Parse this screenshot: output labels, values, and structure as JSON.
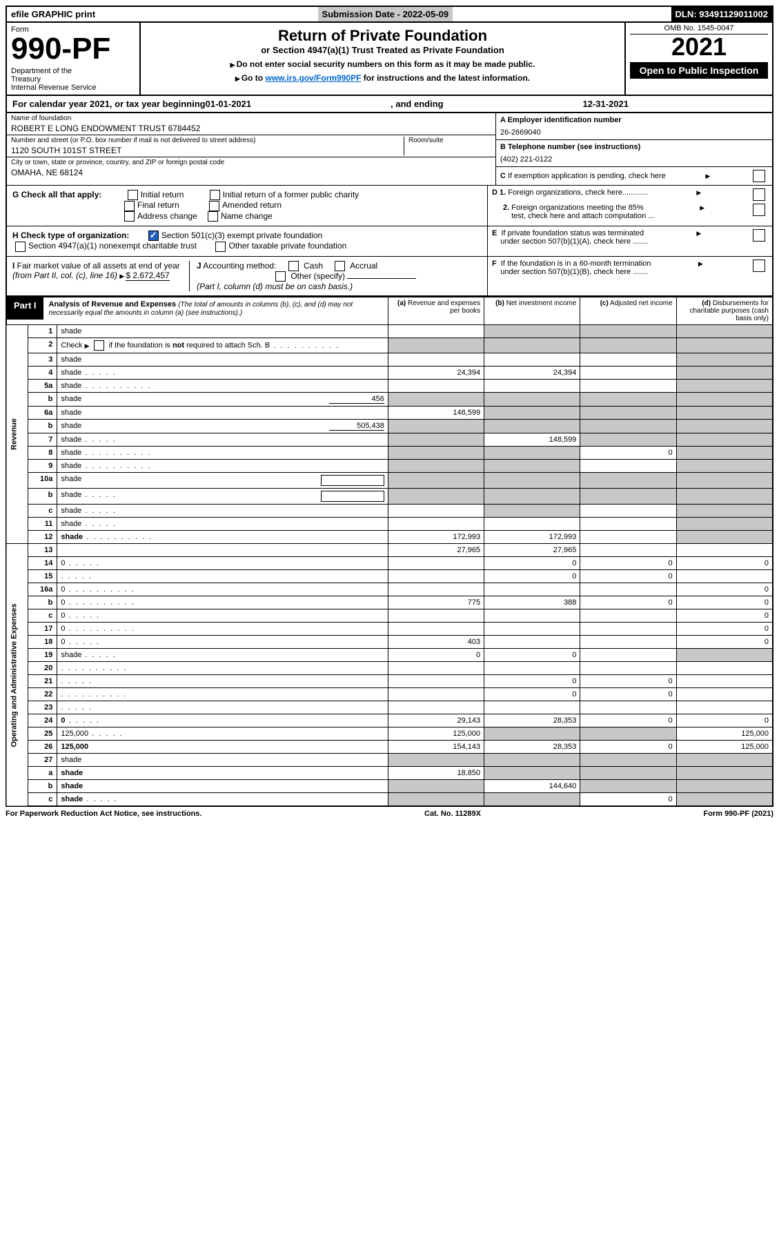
{
  "topbar": {
    "efile": "efile GRAPHIC print",
    "submission_label": "Submission Date - ",
    "submission_date": "2022-05-09",
    "dln_label": "DLN: ",
    "dln": "93491129011002"
  },
  "header": {
    "form_label": "Form",
    "form_no": "990-PF",
    "dept": "Department of the Treasury\nInternal Revenue Service",
    "title": "Return of Private Foundation",
    "subtitle": "or Section 4947(a)(1) Trust Treated as Private Foundation",
    "instr1": "Do not enter social security numbers on this form as it may be made public.",
    "instr2_pre": "Go to ",
    "instr2_link": "www.irs.gov/Form990PF",
    "instr2_post": " for instructions and the latest information.",
    "omb": "OMB No. 1545-0047",
    "year": "2021",
    "open": "Open to Public Inspection"
  },
  "calyear": {
    "pre": "For calendar year 2021, or tax year beginning ",
    "begin": "01-01-2021",
    "mid": ", and ending ",
    "end": "12-31-2021"
  },
  "id": {
    "name_label": "Name of foundation",
    "name": "ROBERT E LONG ENDOWMENT TRUST 6784452",
    "addr_label": "Number and street (or P.O. box number if mail is not delivered to street address)",
    "addr": "1120 SOUTH 101ST STREET",
    "room_label": "Room/suite",
    "city_label": "City or town, state or province, country, and ZIP or foreign postal code",
    "city": "OMAHA, NE  68124",
    "a_label": "A Employer identification number",
    "a_val": "26-2669040",
    "b_label": "B Telephone number (see instructions)",
    "b_val": "(402) 221-0122",
    "c_label": "C If exemption application is pending, check here"
  },
  "checks": {
    "g_label": "G Check all that apply:",
    "g_opts": [
      "Initial return",
      "Initial return of a former public charity",
      "Final return",
      "Amended return",
      "Address change",
      "Name change"
    ],
    "h_label": "H Check type of organization:",
    "h_opt1": "Section 501(c)(3) exempt private foundation",
    "h_opt2": "Section 4947(a)(1) nonexempt charitable trust",
    "h_opt3": "Other taxable private foundation",
    "i_label": "I Fair market value of all assets at end of year (from Part II, col. (c), line 16)",
    "i_val": "$  2,672,457",
    "j_label": "J Accounting method:",
    "j_opts": [
      "Cash",
      "Accrual"
    ],
    "j_other": "Other (specify)",
    "j_note": "(Part I, column (d) must be on cash basis.)",
    "d1": "D 1. Foreign organizations, check here............",
    "d2": "2. Foreign organizations meeting the 85% test, check here and attach computation ...",
    "e": "E  If private foundation status was terminated under section 507(b)(1)(A), check here .......",
    "f": "F  If the foundation is in a 60-month termination under section 507(b)(1)(B), check here ......."
  },
  "part1": {
    "label": "Part I",
    "title": "Analysis of Revenue and Expenses",
    "note": "(The total of amounts in columns (b), (c), and (d) may not necessarily equal the amounts in column (a) (see instructions).)",
    "col_a": "(a)   Revenue and expenses per books",
    "col_b": "(b)   Net investment income",
    "col_c": "(c)   Adjusted net income",
    "col_d": "(d)   Disbursements for charitable purposes (cash basis only)"
  },
  "side": {
    "revenue": "Revenue",
    "opex": "Operating and Administrative Expenses"
  },
  "rows": [
    {
      "n": "1",
      "d": "shade",
      "a": "",
      "b": "shade",
      "c": "shade"
    },
    {
      "n": "2",
      "d": "shade",
      "dots": true,
      "a": "shade",
      "b": "shade",
      "c": "shade"
    },
    {
      "n": "3",
      "d": "shade",
      "a": "",
      "b": "",
      "c": ""
    },
    {
      "n": "4",
      "d": "shade",
      "dots": "short",
      "a": "24,394",
      "b": "24,394",
      "c": ""
    },
    {
      "n": "5a",
      "d": "shade",
      "dots": true,
      "a": "",
      "b": "",
      "c": ""
    },
    {
      "n": "b",
      "d": "shade",
      "inline": "456",
      "a": "shade",
      "b": "shade",
      "c": "shade"
    },
    {
      "n": "6a",
      "d": "shade",
      "a": "148,599",
      "b": "shade",
      "c": "shade"
    },
    {
      "n": "b",
      "d": "shade",
      "inline": "505,438",
      "a": "shade",
      "b": "shade",
      "c": "shade"
    },
    {
      "n": "7",
      "d": "shade",
      "dots": "short",
      "a": "shade",
      "b": "148,599",
      "c": "shade"
    },
    {
      "n": "8",
      "d": "shade",
      "dots": true,
      "a": "shade",
      "b": "shade",
      "c": "0"
    },
    {
      "n": "9",
      "d": "shade",
      "dots": true,
      "a": "shade",
      "b": "shade",
      "c": ""
    },
    {
      "n": "10a",
      "d": "shade",
      "box": true,
      "a": "shade",
      "b": "shade",
      "c": "shade"
    },
    {
      "n": "b",
      "d": "shade",
      "dots": "short",
      "box": true,
      "a": "shade",
      "b": "shade",
      "c": "shade"
    },
    {
      "n": "c",
      "d": "shade",
      "dots": "short",
      "a": "",
      "b": "shade",
      "c": ""
    },
    {
      "n": "11",
      "d": "shade",
      "dots": "short",
      "a": "",
      "b": "",
      "c": ""
    },
    {
      "n": "12",
      "d": "shade",
      "dots": true,
      "bold": true,
      "a": "172,993",
      "b": "172,993",
      "c": ""
    },
    {
      "n": "13",
      "d": "",
      "a": "27,965",
      "b": "27,965",
      "c": ""
    },
    {
      "n": "14",
      "d": "0",
      "dots": "short",
      "a": "",
      "b": "0",
      "c": "0"
    },
    {
      "n": "15",
      "d": "",
      "dots": "short",
      "a": "",
      "b": "0",
      "c": "0"
    },
    {
      "n": "16a",
      "d": "0",
      "dots": true,
      "a": "",
      "b": "",
      "c": ""
    },
    {
      "n": "b",
      "d": "0",
      "dots": true,
      "a": "775",
      "b": "388",
      "c": "0"
    },
    {
      "n": "c",
      "d": "0",
      "dots": "short",
      "a": "",
      "b": "",
      "c": ""
    },
    {
      "n": "17",
      "d": "0",
      "dots": true,
      "a": "",
      "b": "",
      "c": ""
    },
    {
      "n": "18",
      "d": "0",
      "dots": "short",
      "a": "403",
      "b": "",
      "c": ""
    },
    {
      "n": "19",
      "d": "shade",
      "dots": "short",
      "a": "0",
      "b": "0",
      "c": ""
    },
    {
      "n": "20",
      "d": "",
      "dots": true,
      "a": "",
      "b": "",
      "c": ""
    },
    {
      "n": "21",
      "d": "",
      "dots": "short",
      "a": "",
      "b": "0",
      "c": "0"
    },
    {
      "n": "22",
      "d": "",
      "dots": true,
      "a": "",
      "b": "0",
      "c": "0"
    },
    {
      "n": "23",
      "d": "",
      "dots": "short",
      "a": "",
      "b": "",
      "c": ""
    },
    {
      "n": "24",
      "d": "0",
      "dots": "short",
      "bold": true,
      "a": "29,143",
      "b": "28,353",
      "c": "0"
    },
    {
      "n": "25",
      "d": "125,000",
      "dots": "short",
      "a": "125,000",
      "b": "shade",
      "c": "shade"
    },
    {
      "n": "26",
      "d": "125,000",
      "bold": true,
      "a": "154,143",
      "b": "28,353",
      "c": "0"
    },
    {
      "n": "27",
      "d": "shade",
      "a": "shade",
      "b": "shade",
      "c": "shade"
    },
    {
      "n": "a",
      "d": "shade",
      "bold": true,
      "a": "18,850",
      "b": "shade",
      "c": "shade"
    },
    {
      "n": "b",
      "d": "shade",
      "bold": true,
      "a": "shade",
      "b": "144,640",
      "c": "shade"
    },
    {
      "n": "c",
      "d": "shade",
      "dots": "short",
      "bold": true,
      "a": "shade",
      "b": "shade",
      "c": "0"
    }
  ],
  "footer": {
    "left": "For Paperwork Reduction Act Notice, see instructions.",
    "mid": "Cat. No. 11289X",
    "right": "Form 990-PF (2021)"
  }
}
